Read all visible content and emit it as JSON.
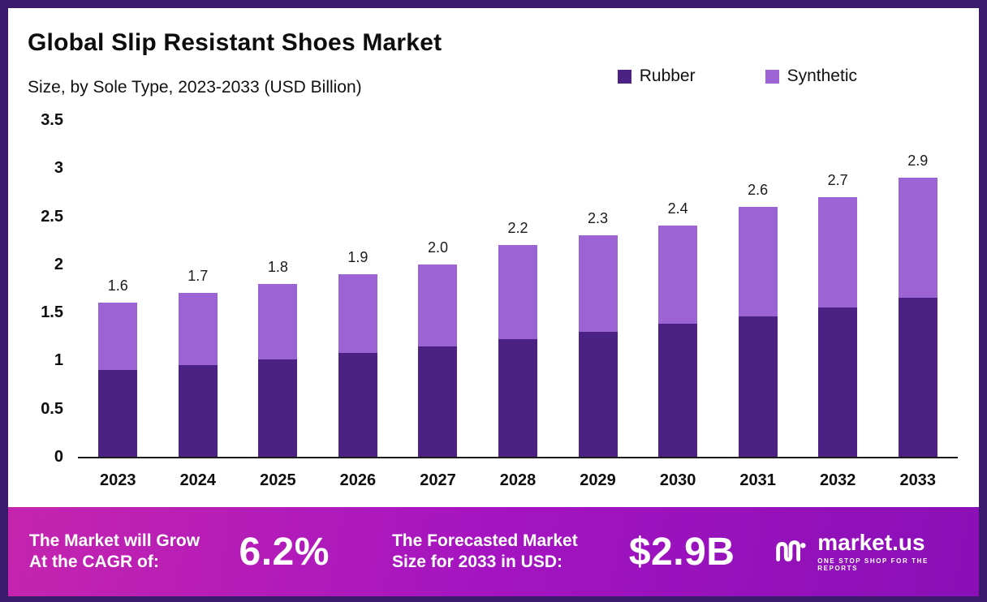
{
  "chart_data": {
    "type": "bar",
    "stacked": true,
    "title": "Global Slip Resistant Shoes Market",
    "subtitle": "Size, by Sole Type, 2023-2033 (USD Billion)",
    "xlabel": "",
    "ylabel": "USD Billion",
    "ylim": [
      0,
      3.5
    ],
    "yticks": [
      "3.5",
      "3",
      "2.5",
      "2",
      "1.5",
      "1",
      "0.5",
      "0"
    ],
    "grid": false,
    "legend_position": "top-right",
    "categories": [
      "2023",
      "2024",
      "2025",
      "2026",
      "2027",
      "2028",
      "2029",
      "2030",
      "2031",
      "2032",
      "2033"
    ],
    "series": [
      {
        "name": "Rubber",
        "color": "#4b2183",
        "values": [
          0.9,
          0.95,
          1.01,
          1.08,
          1.15,
          1.22,
          1.3,
          1.38,
          1.46,
          1.55,
          1.65
        ]
      },
      {
        "name": "Synthetic",
        "color": "#9b63d3",
        "values": [
          0.7,
          0.75,
          0.79,
          0.82,
          0.85,
          0.98,
          1.0,
          1.02,
          1.14,
          1.15,
          1.25
        ]
      }
    ],
    "totals_labels": [
      "1.6",
      "1.7",
      "1.8",
      "1.9",
      "2.0",
      "2.2",
      "2.3",
      "2.4",
      "2.6",
      "2.7",
      "2.9"
    ]
  },
  "banner": {
    "cagr_line1": "The Market will Grow",
    "cagr_line2": "At the CAGR of:",
    "cagr_value": "6.2%",
    "forecast_line1": "The Forecasted Market",
    "forecast_line2": "Size for 2033 in USD:",
    "forecast_value": "$2.9B",
    "logo_text": "market.us",
    "logo_tagline": "ONE STOP SHOP FOR THE REPORTS"
  },
  "colors": {
    "frame": "#3b1a6b",
    "banner_gradient_start": "#c525ae",
    "banner_gradient_mid": "#a414c1",
    "banner_gradient_end": "#8a0fb6",
    "card_background": "#ffffff"
  }
}
